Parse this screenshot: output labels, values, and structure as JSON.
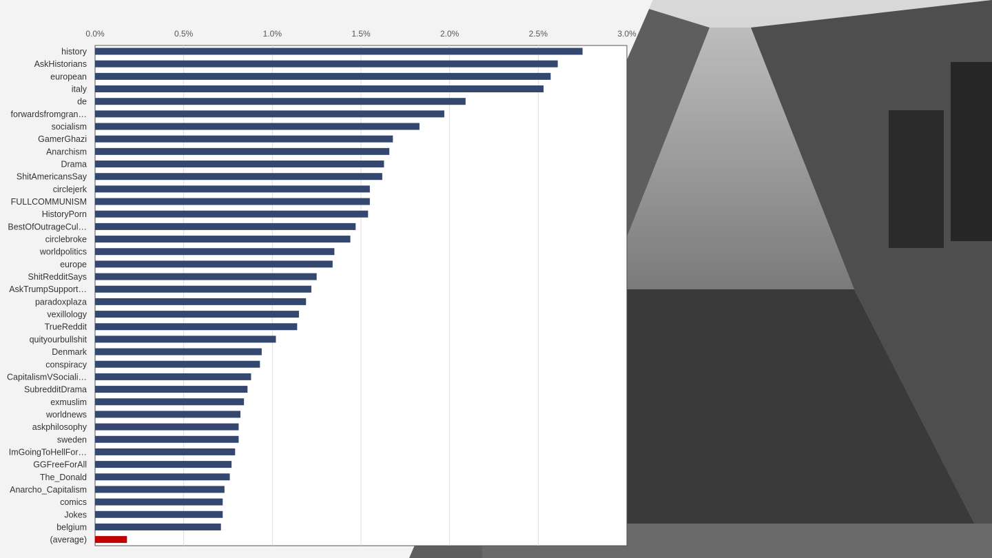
{
  "chart_data": {
    "type": "bar",
    "orientation": "horizontal",
    "title": "",
    "xlabel": "",
    "ylabel": "",
    "x_axis_position": "top",
    "xlim": [
      0,
      3.0
    ],
    "ticks": [
      "0.0%",
      "0.5%",
      "1.0%",
      "1.5%",
      "2.0%",
      "2.5%",
      "3.0%"
    ],
    "tick_values": [
      0,
      0.5,
      1.0,
      1.5,
      2.0,
      2.5,
      3.0
    ],
    "grid": true,
    "bar_color": "#34476e",
    "highlight_color": "#c00000",
    "categories": [
      "history",
      "AskHistorians",
      "european",
      "italy",
      "de",
      "forwardsfromgran…",
      "socialism",
      "GamerGhazi",
      "Anarchism",
      "Drama",
      "ShitAmericansSay",
      "circlejerk",
      "FULLCOMMUNISM",
      "HistoryPorn",
      "BestOfOutrageCul…",
      "circlebroke",
      "worldpolitics",
      "europe",
      "ShitRedditSays",
      "AskTrumpSupport…",
      "paradoxplaza",
      "vexillology",
      "TrueReddit",
      "quityourbullshit",
      "Denmark",
      "conspiracy",
      "CapitalismVSociali…",
      "SubredditDrama",
      "exmuslim",
      "worldnews",
      "askphilosophy",
      "sweden",
      "ImGoingToHellFor…",
      "GGFreeForAll",
      "The_Donald",
      "Anarcho_Capitalism",
      "comics",
      "Jokes",
      "belgium",
      "(average)"
    ],
    "values": [
      2.75,
      2.61,
      2.57,
      2.53,
      2.09,
      1.97,
      1.83,
      1.68,
      1.66,
      1.63,
      1.62,
      1.55,
      1.55,
      1.54,
      1.47,
      1.44,
      1.35,
      1.34,
      1.25,
      1.22,
      1.19,
      1.15,
      1.14,
      1.02,
      0.94,
      0.93,
      0.88,
      0.86,
      0.84,
      0.82,
      0.81,
      0.81,
      0.79,
      0.77,
      0.76,
      0.73,
      0.72,
      0.72,
      0.71,
      0.18
    ],
    "highlight_category": "(average)"
  },
  "photo": {
    "subject": "black-and-white-parade-photograph",
    "colors": {
      "sky": "#cfcfcf",
      "crowd": "#6f6f6f",
      "path": "#9c9c9c",
      "foreground": "#3a3a3a"
    }
  }
}
